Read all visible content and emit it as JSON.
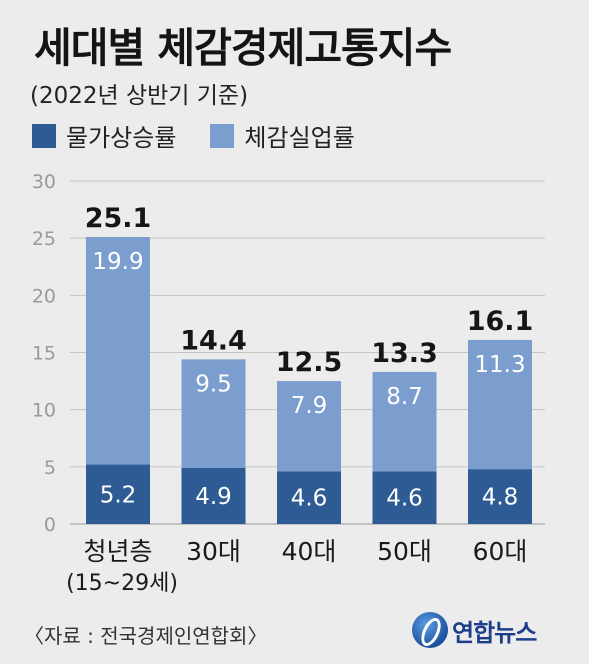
{
  "title": "세대별 체감경제고통지수",
  "subtitle": "(2022년 상반기 기준)",
  "source": "〈자료 : 전국경제인연합회〉",
  "logo_text": "연합뉴스",
  "colors": {
    "inflation": "#2e5b93",
    "unemployment": "#7b9ecf",
    "grid": "#c4c4c4",
    "background": "#ececec"
  },
  "chart_data": {
    "type": "bar",
    "stacked": true,
    "categories": [
      "청년층",
      "30대",
      "40대",
      "50대",
      "60대"
    ],
    "category_sublabels": [
      "(15~29세)",
      "",
      "",
      "",
      ""
    ],
    "series": [
      {
        "name": "물가상승률",
        "values": [
          5.2,
          4.9,
          4.6,
          4.6,
          4.8
        ]
      },
      {
        "name": "체감실업률",
        "values": [
          19.9,
          9.5,
          7.9,
          8.7,
          11.3
        ]
      }
    ],
    "totals": [
      25.1,
      14.4,
      12.5,
      13.3,
      16.1
    ],
    "ylim": [
      0,
      30
    ],
    "yticks": [
      0,
      5,
      10,
      15,
      20,
      25,
      30
    ],
    "grid": true,
    "legend_position": "top-left"
  }
}
